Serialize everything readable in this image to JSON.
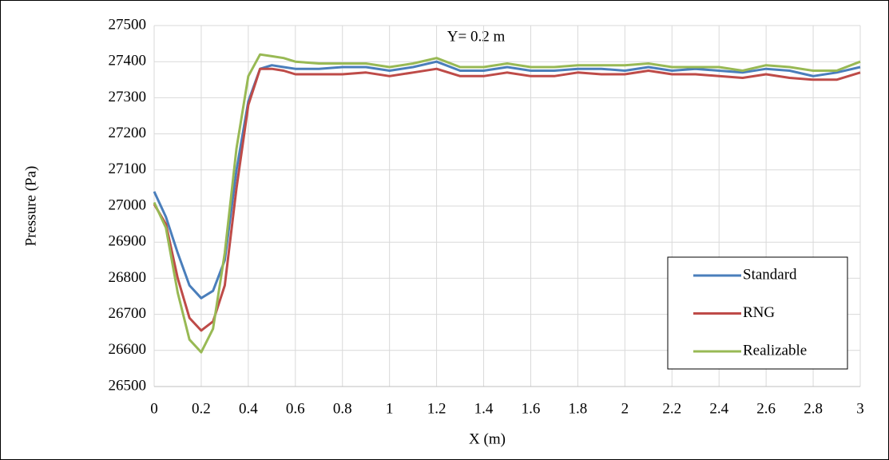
{
  "chart_data": {
    "type": "line",
    "annotation": "Y= 0.2 m",
    "x_label": "X (m)",
    "y_label": "Pressure (Pa)",
    "x": [
      0,
      0.05,
      0.1,
      0.15,
      0.2,
      0.25,
      0.3,
      0.35,
      0.4,
      0.45,
      0.5,
      0.55,
      0.6,
      0.7,
      0.8,
      0.9,
      1,
      1.1,
      1.2,
      1.3,
      1.4,
      1.5,
      1.6,
      1.7,
      1.8,
      1.9,
      2,
      2.1,
      2.2,
      2.3,
      2.4,
      2.5,
      2.6,
      2.7,
      2.8,
      2.9,
      3
    ],
    "series": [
      {
        "name": "Standard",
        "color": "#4a7ebb",
        "values": [
          27040,
          26970,
          26870,
          26780,
          26745,
          26765,
          26850,
          27100,
          27290,
          27380,
          27390,
          27385,
          27380,
          27380,
          27385,
          27385,
          27375,
          27385,
          27400,
          27375,
          27375,
          27385,
          27375,
          27375,
          27380,
          27380,
          27375,
          27385,
          27375,
          27380,
          27375,
          27370,
          27380,
          27375,
          27360,
          27370,
          27385
        ]
      },
      {
        "name": "RNG",
        "color": "#be4b48",
        "values": [
          27005,
          26950,
          26800,
          26690,
          26655,
          26680,
          26780,
          27050,
          27280,
          27380,
          27380,
          27375,
          27365,
          27365,
          27365,
          27370,
          27360,
          27370,
          27380,
          27360,
          27360,
          27370,
          27360,
          27360,
          27370,
          27365,
          27365,
          27375,
          27365,
          27365,
          27360,
          27355,
          27365,
          27355,
          27350,
          27350,
          27370
        ]
      },
      {
        "name": "Realizable",
        "color": "#98b954",
        "values": [
          27010,
          26940,
          26760,
          26630,
          26595,
          26660,
          26870,
          27160,
          27360,
          27420,
          27415,
          27410,
          27400,
          27395,
          27395,
          27395,
          27385,
          27395,
          27410,
          27385,
          27385,
          27395,
          27385,
          27385,
          27390,
          27390,
          27390,
          27395,
          27385,
          27385,
          27385,
          27375,
          27390,
          27385,
          27375,
          27375,
          27400
        ]
      }
    ],
    "xlim": [
      0,
      3
    ],
    "xticks": [
      0,
      0.2,
      0.4,
      0.6,
      0.8,
      1,
      1.2,
      1.4,
      1.6,
      1.8,
      2,
      2.2,
      2.4,
      2.6,
      2.8,
      3
    ],
    "ylim": [
      26500,
      27500
    ],
    "yticks": [
      26500,
      26600,
      26700,
      26800,
      26900,
      27000,
      27100,
      27200,
      27300,
      27400,
      27500
    ],
    "grid": true,
    "legend_position": "lower right"
  }
}
